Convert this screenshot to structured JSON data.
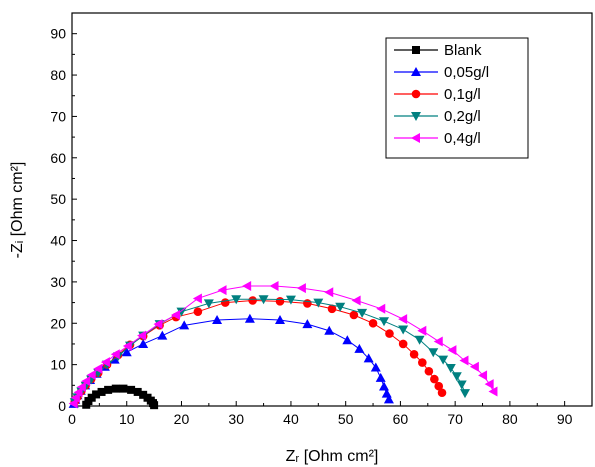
{
  "chart_data": {
    "type": "scatter",
    "xlabel": "Zᵣ [Ohm cm²]",
    "ylabel": "-Zᵢ [Ohm cm²]",
    "xlim": [
      0,
      95
    ],
    "ylim": [
      0,
      95
    ],
    "xticks": [
      0,
      10,
      20,
      30,
      40,
      50,
      60,
      70,
      80,
      90
    ],
    "yticks": [
      0,
      10,
      20,
      30,
      40,
      50,
      60,
      70,
      80,
      90
    ],
    "grid": false,
    "legend_position": "top-right",
    "series": [
      {
        "name": "Blank",
        "color": "#000000",
        "marker": "square",
        "x": [
          2.6,
          3.0,
          3.6,
          4.4,
          5.4,
          6.6,
          8.0,
          9.4,
          10.8,
          12.0,
          13.0,
          13.8,
          14.4,
          14.8,
          15.0
        ],
        "y": [
          0.3,
          1.2,
          2.0,
          2.8,
          3.4,
          3.9,
          4.2,
          4.2,
          3.9,
          3.4,
          2.7,
          2.0,
          1.3,
          0.7,
          0.2
        ]
      },
      {
        "name": "0,05g/l",
        "color": "#0000FF",
        "marker": "triangle-up",
        "x": [
          0.3,
          0.6,
          1.0,
          1.6,
          2.4,
          3.3,
          4.5,
          6.0,
          7.8,
          10.0,
          13.0,
          16.5,
          20.5,
          26.5,
          32.5,
          38.0,
          43.0,
          47.0,
          50.3,
          52.5,
          54.2,
          55.5,
          56.4,
          57.0,
          57.5,
          57.9
        ],
        "y": [
          0.5,
          1.5,
          2.6,
          3.7,
          5.0,
          6.3,
          7.8,
          9.5,
          11.2,
          13.0,
          15.0,
          17.0,
          19.5,
          20.8,
          21.1,
          20.8,
          19.8,
          18.2,
          15.9,
          13.8,
          11.5,
          9.3,
          6.8,
          4.7,
          3.0,
          1.6
        ]
      },
      {
        "name": "0,1g/l",
        "color": "#FF0000",
        "marker": "circle",
        "x": [
          0.5,
          1.0,
          1.7,
          2.5,
          3.5,
          4.8,
          6.4,
          8.4,
          10.6,
          13.0,
          16.0,
          19.0,
          23.0,
          28.0,
          33.0,
          38.0,
          43.0,
          47.5,
          51.5,
          55.0,
          58.0,
          60.5,
          62.5,
          64.0,
          65.2,
          66.2,
          67.0,
          67.6
        ],
        "y": [
          1.0,
          2.2,
          3.6,
          5.0,
          6.5,
          8.0,
          10.0,
          12.3,
          14.8,
          16.9,
          19.5,
          21.5,
          22.8,
          25.0,
          25.5,
          25.3,
          24.8,
          23.5,
          22.0,
          20.0,
          17.5,
          15.0,
          12.5,
          10.5,
          8.4,
          6.5,
          4.8,
          3.2
        ]
      },
      {
        "name": "0,2g/l",
        "color": "#008080",
        "marker": "triangle-down",
        "x": [
          0.5,
          1.0,
          1.7,
          2.5,
          3.5,
          4.8,
          6.4,
          8.4,
          10.6,
          13.0,
          16.0,
          20.0,
          25.0,
          30.0,
          35.0,
          40.0,
          45.0,
          49.0,
          53.0,
          57.0,
          60.5,
          63.5,
          66.0,
          67.8,
          69.2,
          70.3,
          71.2,
          71.8
        ],
        "y": [
          0.9,
          2.1,
          3.5,
          4.9,
          6.4,
          8.0,
          10.0,
          12.0,
          14.6,
          17.0,
          19.8,
          22.8,
          24.8,
          25.8,
          25.8,
          25.7,
          25.0,
          24.0,
          22.5,
          20.5,
          18.5,
          16.0,
          13.0,
          11.2,
          9.2,
          7.2,
          5.2,
          3.1
        ]
      },
      {
        "name": "0,4g/l",
        "color": "#FF00FF",
        "marker": "triangle-left",
        "x": [
          0.3,
          0.7,
          1.2,
          1.8,
          2.6,
          3.6,
          4.8,
          6.2,
          8.0,
          10.2,
          12.8,
          15.8,
          19.0,
          23.0,
          27.5,
          32.0,
          37.0,
          42.0,
          47.0,
          52.0,
          56.5,
          60.5,
          64.0,
          67.0,
          69.5,
          71.7,
          73.6,
          75.1,
          76.3,
          77.0
        ],
        "y": [
          0.6,
          2.0,
          3.3,
          4.6,
          6.0,
          7.5,
          9.0,
          10.6,
          12.5,
          14.5,
          17.0,
          19.8,
          22.0,
          26.0,
          28.0,
          29.0,
          29.0,
          28.5,
          27.5,
          25.5,
          23.5,
          21.0,
          18.2,
          15.6,
          13.5,
          11.0,
          9.5,
          7.4,
          5.3,
          3.5
        ]
      }
    ]
  }
}
